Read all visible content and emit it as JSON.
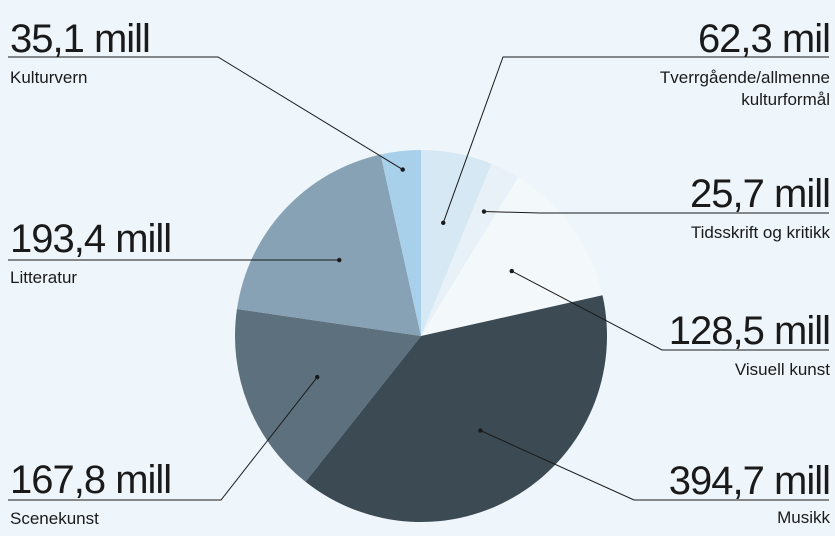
{
  "chart_data": {
    "type": "pie",
    "slices": [
      {
        "label": "Tverrgående/allmenne kulturformål",
        "value_text": "62,3 mil",
        "value": 62.3,
        "color": "#d6e8f3"
      },
      {
        "label": "Tidsskrift og kritikk",
        "value_text": "25,7 mill",
        "value": 25.7,
        "color": "#e8f1f8"
      },
      {
        "label": "Visuell kunst",
        "value_text": "128,5 mill",
        "value": 128.5,
        "color": "#f3f8fb"
      },
      {
        "label": "Musikk",
        "value_text": "394,7 mill",
        "value": 394.7,
        "color": "#3c4a54"
      },
      {
        "label": "Scenekunst",
        "value_text": "167,8 mill",
        "value": 167.8,
        "color": "#5d707d"
      },
      {
        "label": "Litteratur",
        "value_text": "193,4 mill",
        "value": 193.4,
        "color": "#87a2b4"
      },
      {
        "label": "Kulturvern",
        "value_text": "35,1 mill",
        "value": 35.1,
        "color": "#a9d0ea"
      }
    ]
  },
  "labels": {
    "tverr": {
      "value": "62,3 mil",
      "name1": "Tverrgående/allmenne",
      "name2": "kulturformål"
    },
    "tids": {
      "value": "25,7 mill",
      "name": "Tidsskrift og kritikk"
    },
    "visuell": {
      "value": "128,5 mill",
      "name": "Visuell kunst"
    },
    "musikk": {
      "value": "394,7 mill",
      "name": "Musikk"
    },
    "scene": {
      "value": "167,8 mill",
      "name": "Scenekunst"
    },
    "litt": {
      "value": "193,4 mill",
      "name": "Litteratur"
    },
    "kultur": {
      "value": "35,1 mill",
      "name": "Kulturvern"
    }
  }
}
